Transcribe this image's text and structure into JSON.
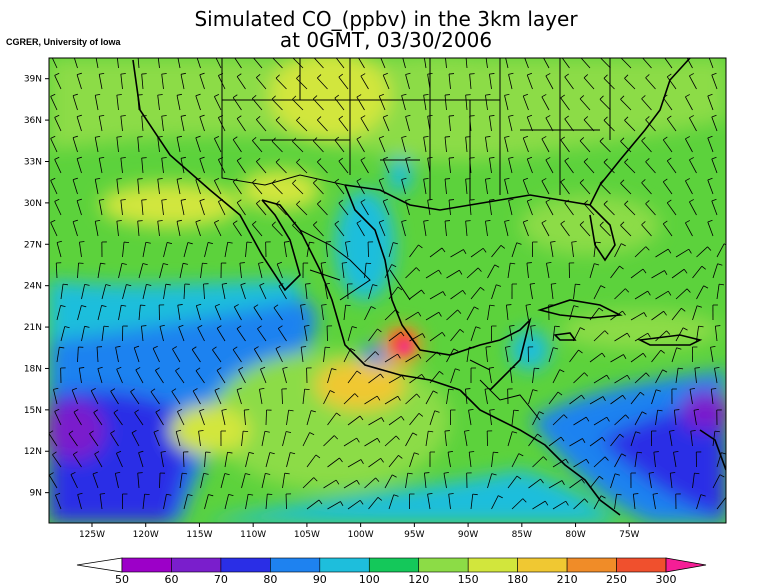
{
  "title_line1": "Simulated CO_(ppbv) in the 3km layer",
  "title_line2": "at 0GMT, 03/30/2006",
  "credit": "CGRER, University of Iowa",
  "map": {
    "projection": "lat-lon",
    "lon_range": [
      -129,
      -66
    ],
    "lat_range": [
      6.8,
      40.5
    ],
    "lat_ticks": [
      {
        "value": 39,
        "label": "39N"
      },
      {
        "value": 36,
        "label": "36N"
      },
      {
        "value": 33,
        "label": "33N"
      },
      {
        "value": 30,
        "label": "30N"
      },
      {
        "value": 27,
        "label": "27N"
      },
      {
        "value": 24,
        "label": "24N"
      },
      {
        "value": 21,
        "label": "21N"
      },
      {
        "value": 18,
        "label": "18N"
      },
      {
        "value": 15,
        "label": "15N"
      },
      {
        "value": 12,
        "label": "12N"
      },
      {
        "value": 9,
        "label": "9N"
      }
    ],
    "lon_ticks": [
      {
        "value": -125,
        "label": "125W"
      },
      {
        "value": -120,
        "label": "120W"
      },
      {
        "value": -115,
        "label": "115W"
      },
      {
        "value": -110,
        "label": "110W"
      },
      {
        "value": -105,
        "label": "105W"
      },
      {
        "value": -100,
        "label": "100W"
      },
      {
        "value": -95,
        "label": "95W"
      },
      {
        "value": -90,
        "label": "90W"
      },
      {
        "value": -85,
        "label": "85W"
      },
      {
        "value": -80,
        "label": "80W"
      },
      {
        "value": -75,
        "label": "75W"
      }
    ],
    "overlay": "wind barbs"
  },
  "colorbar": {
    "labels": [
      "50",
      "60",
      "70",
      "80",
      "90",
      "100",
      "120",
      "150",
      "180",
      "210",
      "250",
      "300"
    ],
    "colors": [
      "#9c00c8",
      "#7a1ecc",
      "#2a2ee6",
      "#1e82f0",
      "#1ebedc",
      "#14c85a",
      "#8cdc46",
      "#d2e63c",
      "#f0c832",
      "#f08c28",
      "#f0502d",
      "#f51e96"
    ],
    "below_color": "#ffffff",
    "above_color": "#f51e96"
  }
}
